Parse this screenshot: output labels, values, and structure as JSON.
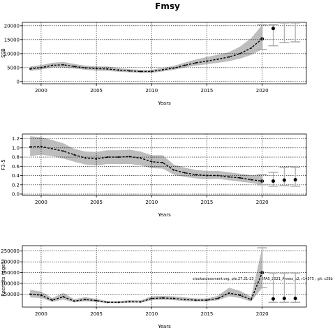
{
  "title": "Fmsy",
  "note": "stockassessment.org, ple.27.21-23_WKBFAS_2021_Annex_v2, r14375 , git: c28b",
  "chart_data": [
    {
      "type": "line",
      "ylabel": "SSB",
      "xlabel": "Years",
      "xlim": [
        1998.3,
        2024.0
      ],
      "ylim": [
        -800,
        21200
      ],
      "xticks": [
        2000,
        2005,
        2010,
        2015,
        2020
      ],
      "yticks": [
        0,
        5000,
        10000,
        15000,
        20000
      ],
      "ytick_labels": [
        "0",
        "5000",
        "10000",
        "15000",
        "20000"
      ],
      "grid": true,
      "x": [
        1999,
        2000,
        2001,
        2002,
        2003,
        2004,
        2005,
        2006,
        2007,
        2008,
        2009,
        2010,
        2011,
        2012,
        2013,
        2014,
        2015,
        2016,
        2017,
        2018,
        2019,
        2020
      ],
      "estimate": [
        4500,
        5000,
        5800,
        6000,
        5400,
        4900,
        4600,
        4500,
        4100,
        3800,
        3600,
        3600,
        4200,
        4800,
        5800,
        6700,
        7300,
        8000,
        8800,
        10000,
        12000,
        15300
      ],
      "lower": [
        3800,
        4300,
        5000,
        5100,
        4600,
        4200,
        3900,
        3800,
        3500,
        3300,
        3100,
        3100,
        3600,
        4200,
        5000,
        5700,
        6200,
        6700,
        7300,
        8200,
        9500,
        11500
      ],
      "upper": [
        5400,
        5900,
        6700,
        7000,
        6300,
        5700,
        5400,
        5400,
        4800,
        4400,
        4200,
        4200,
        4900,
        5600,
        6800,
        7900,
        8800,
        9600,
        10500,
        12500,
        15500,
        20300
      ],
      "forecast": [
        {
          "x": 2021,
          "y": 19000,
          "lo": 12800,
          "hi": 20400
        },
        {
          "x": 2022,
          "y": null,
          "lo": 14000,
          "hi": 21000
        },
        {
          "x": 2023,
          "y": null,
          "lo": 14200,
          "hi": 21000
        }
      ]
    },
    {
      "type": "line",
      "ylabel": "F3-5",
      "xlabel": "Years",
      "xlim": [
        1998.3,
        2024.0
      ],
      "ylim": [
        -0.03,
        1.3
      ],
      "xticks": [
        2000,
        2005,
        2010,
        2015,
        2020
      ],
      "yticks": [
        0.0,
        0.2,
        0.4,
        0.6,
        0.8,
        1.0,
        1.2
      ],
      "ytick_labels": [
        "0.0",
        "0.2",
        "0.4",
        "0.6",
        "0.8",
        "1.0",
        "1.2"
      ],
      "grid": true,
      "x": [
        1999,
        2000,
        2001,
        2002,
        2003,
        2004,
        2005,
        2006,
        2007,
        2008,
        2009,
        2010,
        2011,
        2012,
        2013,
        2014,
        2015,
        2016,
        2017,
        2018,
        2019,
        2020
      ],
      "estimate": [
        1.02,
        1.03,
        0.98,
        0.93,
        0.85,
        0.78,
        0.76,
        0.8,
        0.8,
        0.81,
        0.78,
        0.7,
        0.68,
        0.52,
        0.46,
        0.42,
        0.4,
        0.4,
        0.37,
        0.35,
        0.31,
        0.28
      ],
      "lower": [
        0.82,
        0.85,
        0.82,
        0.77,
        0.7,
        0.64,
        0.62,
        0.65,
        0.65,
        0.65,
        0.62,
        0.56,
        0.55,
        0.42,
        0.37,
        0.34,
        0.32,
        0.33,
        0.3,
        0.27,
        0.24,
        0.2
      ],
      "upper": [
        1.25,
        1.23,
        1.17,
        1.1,
        0.98,
        0.92,
        0.91,
        0.95,
        0.95,
        0.96,
        0.92,
        0.84,
        0.84,
        0.64,
        0.57,
        0.52,
        0.5,
        0.5,
        0.47,
        0.44,
        0.41,
        0.42
      ],
      "forecast": [
        {
          "x": 2021,
          "y": 0.28,
          "lo": 0.17,
          "hi": 0.47
        },
        {
          "x": 2022,
          "y": 0.3,
          "lo": 0.18,
          "hi": 0.58
        },
        {
          "x": 2023,
          "y": 0.31,
          "lo": 0.17,
          "hi": 0.58
        }
      ]
    },
    {
      "type": "line",
      "ylabel": "Recruits (age1)",
      "xlabel": "Years",
      "xlim": [
        1998.3,
        2024.0
      ],
      "ylim": [
        -10000,
        275000
      ],
      "xticks": [
        2000,
        2005,
        2010,
        2015,
        2020
      ],
      "yticks": [
        50000,
        100000,
        150000,
        200000,
        250000
      ],
      "ytick_labels": [
        "50000",
        "100000",
        "150000",
        "200000",
        "250000"
      ],
      "grid": true,
      "x": [
        1999,
        2000,
        2001,
        2002,
        2003,
        2004,
        2005,
        2006,
        2007,
        2008,
        2009,
        2010,
        2011,
        2012,
        2013,
        2014,
        2015,
        2016,
        2017,
        2018,
        2019,
        2020
      ],
      "estimate": [
        50000,
        45000,
        22000,
        38000,
        18000,
        25000,
        20000,
        12000,
        12000,
        15000,
        14000,
        30000,
        32000,
        30000,
        25000,
        22000,
        22000,
        30000,
        55000,
        45000,
        25000,
        150000
      ],
      "lower": [
        35000,
        32000,
        14000,
        25000,
        12000,
        17000,
        14000,
        8000,
        8000,
        10000,
        10000,
        22000,
        24000,
        22000,
        18000,
        16000,
        16000,
        22000,
        40000,
        32000,
        16000,
        80000
      ],
      "upper": [
        70000,
        62000,
        32000,
        55000,
        27000,
        36000,
        28000,
        18000,
        18000,
        22000,
        21000,
        40000,
        42000,
        40000,
        35000,
        30000,
        30000,
        42000,
        80000,
        65000,
        38000,
        265000
      ],
      "forecast": [
        {
          "x": 2021,
          "y": 28000,
          "lo": 12000,
          "hi": 148000
        },
        {
          "x": 2022,
          "y": 30000,
          "lo": 12000,
          "hi": 148000
        },
        {
          "x": 2023,
          "y": 30000,
          "lo": 12000,
          "hi": 148000
        }
      ]
    }
  ]
}
